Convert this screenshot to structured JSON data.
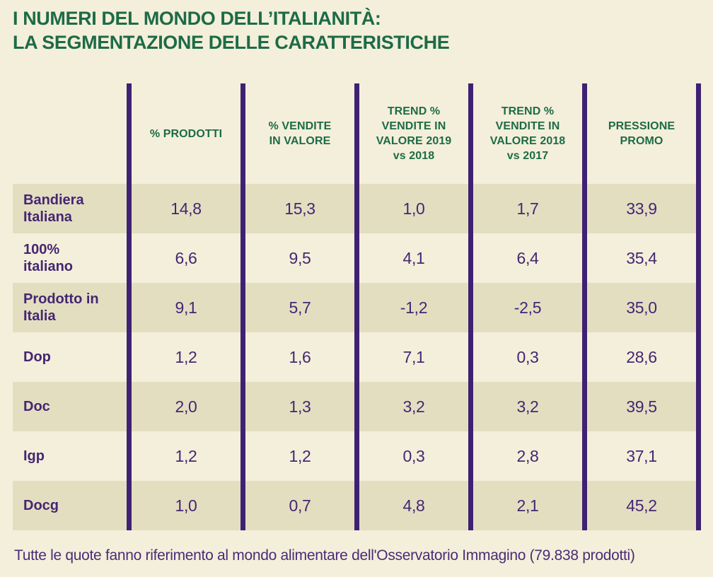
{
  "title": "I NUMERI DEL MONDO DELL’ITALIANITÀ:\nLA SEGMENTAZIONE DELLE CARATTERISTICHE",
  "footnote": "Tutte le quote fanno riferimento al mondo alimentare dell'Osservatorio Immagino (79.838 prodotti)",
  "colors": {
    "background": "#f4efda",
    "row_shade": "#e4dec1",
    "divider_purple": "#3f2173",
    "text_purple": "#452672",
    "heading_green": "#1d6b47"
  },
  "table": {
    "columns": [
      "% PRODOTTI",
      "% VENDITE\nIN VALORE",
      "TREND %\nVENDITE IN\nVALORE 2019\nvs 2018",
      "TREND %\nVENDITE IN\nVALORE 2018\nvs 2017",
      "PRESSIONE\nPROMO"
    ],
    "rows": [
      {
        "label": "Bandiera\nItaliana",
        "values": [
          "14,8",
          "15,3",
          "1,0",
          "1,7",
          "33,9"
        ]
      },
      {
        "label": "100%\nitaliano",
        "values": [
          "6,6",
          "9,5",
          "4,1",
          "6,4",
          "35,4"
        ]
      },
      {
        "label": "Prodotto in\nItalia",
        "values": [
          "9,1",
          "5,7",
          "-1,2",
          "-2,5",
          "35,0"
        ]
      },
      {
        "label": "Dop",
        "values": [
          "1,2",
          "1,6",
          "7,1",
          "0,3",
          "28,6"
        ]
      },
      {
        "label": "Doc",
        "values": [
          "2,0",
          "1,3",
          "3,2",
          "3,2",
          "39,5"
        ]
      },
      {
        "label": "Igp",
        "values": [
          "1,2",
          "1,2",
          "0,3",
          "2,8",
          "37,1"
        ]
      },
      {
        "label": "Docg",
        "values": [
          "1,0",
          "0,7",
          "4,8",
          "2,1",
          "45,2"
        ]
      }
    ]
  },
  "chart_data": {
    "type": "table",
    "title": "I NUMERI DEL MONDO DELL’ITALIANITÀ: LA SEGMENTAZIONE DELLE CARATTERISTICHE",
    "columns": [
      "% PRODOTTI",
      "% VENDITE IN VALORE",
      "TREND % VENDITE IN VALORE 2019 vs 2018",
      "TREND % VENDITE IN VALORE 2018 vs 2017",
      "PRESSIONE PROMO"
    ],
    "rows": [
      {
        "label": "Bandiera Italiana",
        "values": [
          14.8,
          15.3,
          1.0,
          1.7,
          33.9
        ]
      },
      {
        "label": "100% italiano",
        "values": [
          6.6,
          9.5,
          4.1,
          6.4,
          35.4
        ]
      },
      {
        "label": "Prodotto in Italia",
        "values": [
          9.1,
          5.7,
          -1.2,
          -2.5,
          35.0
        ]
      },
      {
        "label": "Dop",
        "values": [
          1.2,
          1.6,
          7.1,
          0.3,
          28.6
        ]
      },
      {
        "label": "Doc",
        "values": [
          2.0,
          1.3,
          3.2,
          3.2,
          39.5
        ]
      },
      {
        "label": "Igp",
        "values": [
          1.2,
          1.2,
          0.3,
          2.8,
          37.1
        ]
      },
      {
        "label": "Docg",
        "values": [
          1.0,
          0.7,
          4.8,
          2.1,
          45.2
        ]
      }
    ],
    "note": "Tutte le quote fanno riferimento al mondo alimentare dell'Osservatorio Immagino (79.838 prodotti)"
  }
}
